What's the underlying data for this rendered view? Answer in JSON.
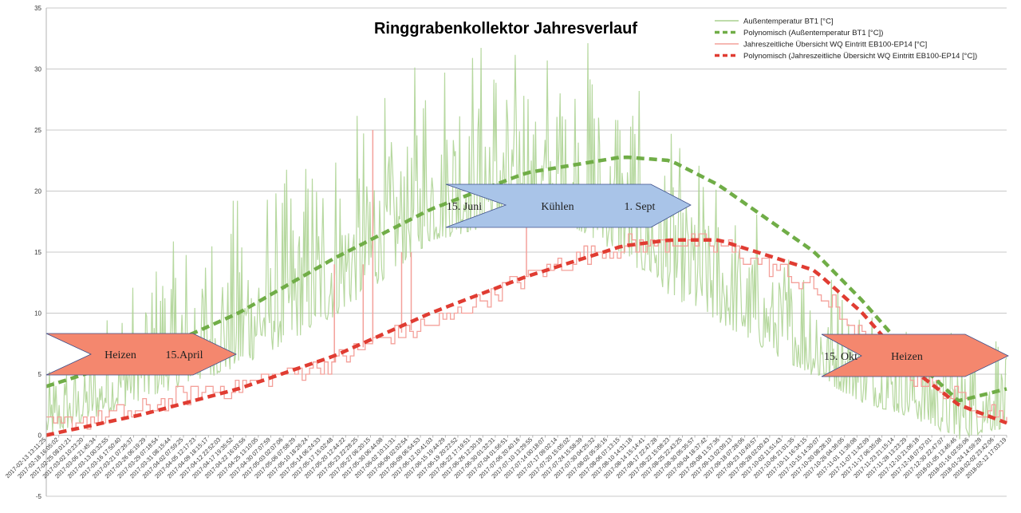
{
  "chart_data": {
    "type": "line",
    "title": "Ringgrabenkollektor Jahresverlauf",
    "xlabel": "",
    "ylabel": "",
    "ylim": [
      -5,
      35
    ],
    "yticks": [
      -5,
      0,
      5,
      10,
      15,
      20,
      25,
      30,
      35
    ],
    "grid": true,
    "legend_position": "top-right",
    "x_start": "2017-02-13",
    "x_end": "2018-02-16",
    "xtick_labels": [
      "2017-02-13 13:11:25",
      "2017-02-18 16:05:02",
      "2017-02-25 08:01:21",
      "2017-03-02 10:23:20",
      "2017-03-06 21:45:34",
      "2017-03-13 00:32:55",
      "2017-03-16 17:50:40",
      "2017-03-21 07:26:37",
      "2017-03-26 06:19:29",
      "2017-03-29 07:18:54",
      "2017-03-31 08:15:44",
      "2017-04-02 07:59:25",
      "2017-04-05 12:17:23",
      "2017-04-09 18:15:17",
      "2017-04-12 22:52:03",
      "2017-04-17 19:35:52",
      "2017-04-22 16:03:56",
      "2017-04-25 13:10:05",
      "2017-04-30 07:07:59",
      "2017-05-03 02:07:06",
      "2017-05-06 07:58:29",
      "2017-05-10 18:26:24",
      "2017-05-14 06:24:33",
      "2017-05-17 15:02:48",
      "2017-05-20 12:44:22",
      "2017-05-23 22:28:25",
      "2017-05-27 06:20:15",
      "2017-05-30 06:44:08",
      "2017-06-02 10:11:31",
      "2017-06-06 02:02:54",
      "2017-06-09 06:54:53",
      "2017-06-12 10:41:03",
      "2017-06-15 19:44:29",
      "2017-06-19 20:22:52",
      "2017-06-22 17:19:51",
      "2017-06-26 12:30:19",
      "2017-06-30 01:32:31",
      "2017-07-04 01:56:51",
      "2017-07-06 20:40:16",
      "2017-07-10 13:29:55",
      "2017-07-14 00:18:07",
      "2017-07-17 09:02:14",
      "2017-07-20 15:05:02",
      "2017-07-24 15:58:39",
      "2017-07-30 04:25:32",
      "2017-08-02 05:36:16",
      "2017-08-06 07:13:15",
      "2017-08-10 14:31:18",
      "2017-08-14 15:14:41",
      "2017-08-17 22:47:28",
      "2017-08-22 15:08:23",
      "2017-08-25 22:43:25",
      "2017-08-30 05:35:57",
      "2017-09-04 18:37:42",
      "2017-09-08 11:57:36",
      "2017-09-13 02:09:13",
      "2017-09-18 07:28:06",
      "2017-09-23 10:49:57",
      "2017-09-28 02:00:43",
      "2017-10-02 11:51:43",
      "2017-10-06 21:01:35",
      "2017-10-11 16:34:15",
      "2017-10-15 14:30:07",
      "2017-10-20 08:28:10",
      "2017-10-26 04:36:05",
      "2017-11-01 11:36:08",
      "2017-11-07 11:42:09",
      "2017-11-17 06:35:08",
      "2017-11-23 21:15:14",
      "2017-11-28 13:23:29",
      "2017-12-10 21:06:18",
      "2017-12-18 07:57:01",
      "2017-12-30 22:47:07",
      "2018-01-05 13:46:46",
      "2018-01-16 02:55:06",
      "2018-01-24 14:59:28",
      "2018-02-02 23:42:06",
      "2018-02-12 17:03:19"
    ],
    "series": [
      {
        "name": "Außentemperatur BT1 [°C]",
        "color": "#a9d18e",
        "kind": "noisy-line",
        "envelope_x_frac": [
          0,
          0.05,
          0.1,
          0.15,
          0.2,
          0.25,
          0.3,
          0.35,
          0.4,
          0.45,
          0.5,
          0.55,
          0.6,
          0.65,
          0.7,
          0.75,
          0.8,
          0.85,
          0.9,
          0.95,
          1.0
        ],
        "envelope_min": [
          -1,
          0,
          1,
          2,
          3,
          5,
          7,
          10,
          13,
          14,
          15,
          14,
          12,
          9,
          7,
          5,
          3,
          1,
          0,
          -2,
          -1
        ],
        "envelope_max": [
          5,
          9,
          14,
          17,
          20,
          22,
          25,
          28,
          32,
          33,
          32,
          34,
          30,
          25,
          22,
          18,
          15,
          12,
          10,
          9,
          10
        ]
      },
      {
        "name": "Polynomisch (Außentemperatur BT1 [°C])",
        "color": "#70ad47",
        "kind": "trend",
        "x_frac": [
          0,
          0.1,
          0.2,
          0.3,
          0.4,
          0.5,
          0.6,
          0.65,
          0.7,
          0.8,
          0.85,
          0.9,
          0.95,
          1.0
        ],
        "values": [
          4,
          6.5,
          10,
          14.5,
          18.5,
          21.5,
          22.8,
          22.5,
          20.5,
          15,
          11,
          6.5,
          2.8,
          3.8
        ]
      },
      {
        "name": "Jahreszeitliche Übersicht WQ Eintritt EB100-EP14 [°C]",
        "color": "#f4a09a",
        "kind": "stepped-line",
        "x_frac": [
          0,
          0.05,
          0.1,
          0.15,
          0.2,
          0.25,
          0.3,
          0.35,
          0.4,
          0.45,
          0.5,
          0.55,
          0.6,
          0.65,
          0.7,
          0.75,
          0.8,
          0.85,
          0.9,
          0.95,
          1.0
        ],
        "values": [
          0.5,
          1.5,
          2,
          3.5,
          4,
          5,
          6,
          8,
          9,
          11,
          13,
          14.5,
          15.5,
          15.8,
          15.5,
          14,
          12,
          8,
          5,
          3,
          1.5
        ],
        "spikes_x_frac": [
          0.3,
          0.33,
          0.34,
          0.37,
          0.38,
          0.5
        ],
        "spikes_values": [
          14,
          14,
          25,
          15,
          15,
          17
        ]
      },
      {
        "name": "Polynomisch (Jahreszeitliche Übersicht WQ Eintritt EB100-EP14 [°C])",
        "color": "#e03c32",
        "kind": "trend",
        "x_frac": [
          0,
          0.1,
          0.2,
          0.3,
          0.4,
          0.5,
          0.6,
          0.65,
          0.7,
          0.8,
          0.85,
          0.9,
          0.95,
          1.0
        ],
        "values": [
          0,
          1.7,
          3.8,
          6.5,
          10,
          13,
          15.5,
          16,
          16,
          13.5,
          10,
          5.5,
          2.5,
          1
        ]
      }
    ],
    "annotations": [
      {
        "id": "heizen-left",
        "shape": "arrow-right",
        "fill": "#f4876e",
        "texts": [
          "Heizen",
          "15.April"
        ]
      },
      {
        "id": "kuehlen",
        "shape": "arrow-right",
        "fill": "#a9c4e8",
        "texts": [
          "15. Juni",
          "Kühlen",
          "1. Sept"
        ]
      },
      {
        "id": "heizen-right",
        "shape": "arrow-right",
        "fill": "#f4876e",
        "texts": [
          "15. Okt",
          "Heizen"
        ]
      }
    ]
  }
}
